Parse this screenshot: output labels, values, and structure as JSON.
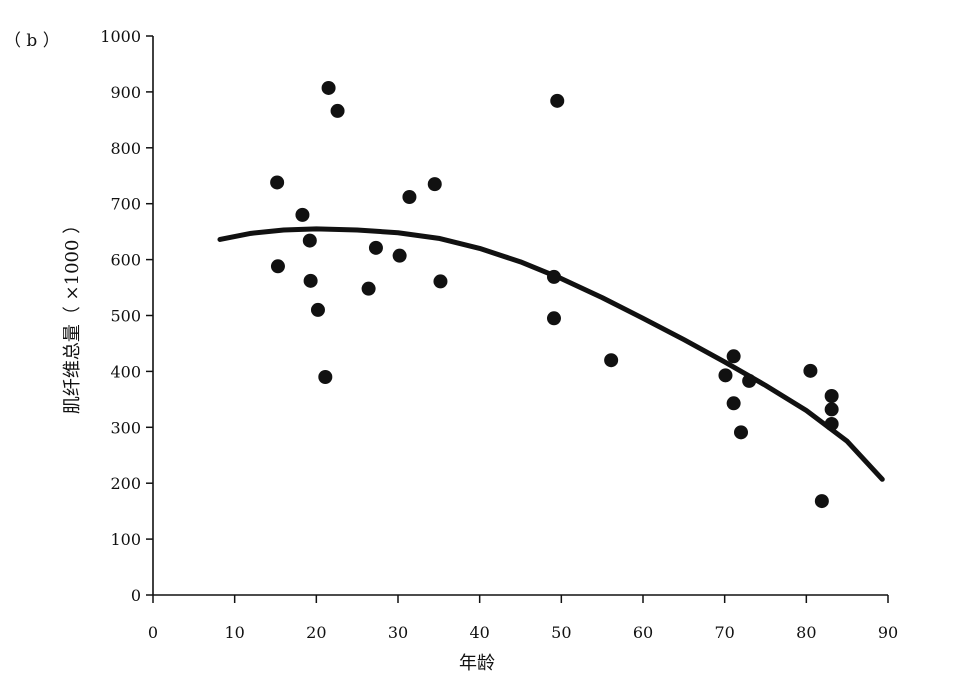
{
  "panel_label": "（ b ）",
  "chart_data": {
    "type": "scatter",
    "xlabel": "年龄",
    "ylabel": "肌纤维总量（ ×1000 ）",
    "xlim": [
      0,
      90
    ],
    "ylim": [
      0,
      1000
    ],
    "x_ticks": [
      0,
      10,
      20,
      30,
      40,
      50,
      60,
      70,
      80,
      90
    ],
    "y_ticks": [
      0,
      100,
      200,
      300,
      400,
      500,
      600,
      700,
      800,
      900,
      1000
    ],
    "grid": false,
    "colors": {
      "marker": "#111111",
      "curve": "#111111",
      "axis": "#111111"
    },
    "points": [
      {
        "x": 15.2,
        "y": 738
      },
      {
        "x": 15.3,
        "y": 588
      },
      {
        "x": 18.3,
        "y": 680
      },
      {
        "x": 19.2,
        "y": 634
      },
      {
        "x": 19.3,
        "y": 562
      },
      {
        "x": 20.2,
        "y": 510
      },
      {
        "x": 21.1,
        "y": 390
      },
      {
        "x": 21.5,
        "y": 907
      },
      {
        "x": 22.6,
        "y": 866
      },
      {
        "x": 26.4,
        "y": 548
      },
      {
        "x": 27.3,
        "y": 621
      },
      {
        "x": 30.2,
        "y": 607
      },
      {
        "x": 31.4,
        "y": 712
      },
      {
        "x": 34.5,
        "y": 735
      },
      {
        "x": 35.2,
        "y": 561
      },
      {
        "x": 49.1,
        "y": 569
      },
      {
        "x": 49.1,
        "y": 495
      },
      {
        "x": 49.5,
        "y": 884
      },
      {
        "x": 56.1,
        "y": 420
      },
      {
        "x": 70.1,
        "y": 393
      },
      {
        "x": 71.1,
        "y": 427
      },
      {
        "x": 71.1,
        "y": 343
      },
      {
        "x": 72.0,
        "y": 291
      },
      {
        "x": 73.0,
        "y": 383
      },
      {
        "x": 80.5,
        "y": 401
      },
      {
        "x": 81.9,
        "y": 168
      },
      {
        "x": 83.1,
        "y": 356
      },
      {
        "x": 83.1,
        "y": 332
      },
      {
        "x": 83.1,
        "y": 306
      }
    ],
    "fit_curve": [
      {
        "x": 8.2,
        "y": 636
      },
      {
        "x": 12,
        "y": 647
      },
      {
        "x": 16,
        "y": 653
      },
      {
        "x": 20,
        "y": 655
      },
      {
        "x": 25,
        "y": 653
      },
      {
        "x": 30,
        "y": 648
      },
      {
        "x": 35,
        "y": 638
      },
      {
        "x": 40,
        "y": 620
      },
      {
        "x": 45,
        "y": 596
      },
      {
        "x": 50,
        "y": 566
      },
      {
        "x": 55,
        "y": 532
      },
      {
        "x": 60,
        "y": 495
      },
      {
        "x": 65,
        "y": 457
      },
      {
        "x": 70,
        "y": 417
      },
      {
        "x": 75,
        "y": 375
      },
      {
        "x": 80,
        "y": 330
      },
      {
        "x": 85,
        "y": 275
      },
      {
        "x": 89.3,
        "y": 207
      }
    ]
  }
}
